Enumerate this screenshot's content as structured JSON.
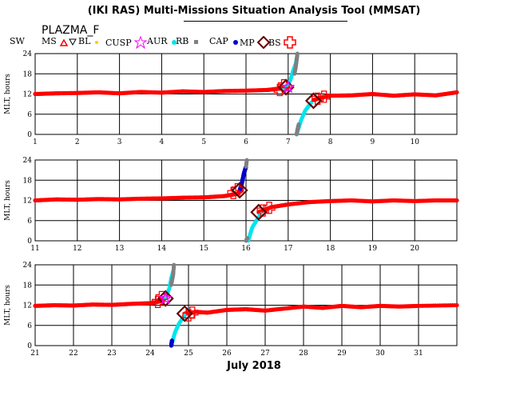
{
  "header": {
    "title": "(IKI RAS) Multi-Missions Situation Analysis Tool (MMSAT)",
    "subtitle": "PLAZMA_F"
  },
  "legend": [
    {
      "label": "SW",
      "symbol": "none",
      "color": "#000000"
    },
    {
      "label": "MS",
      "symbol": "triangle",
      "color": "#ff0000"
    },
    {
      "label": "BL",
      "symbol": "triangle-down",
      "color": "#000000"
    },
    {
      "label": "CUSP",
      "symbol": "dot",
      "color": "#ffcc00"
    },
    {
      "label": "AUR",
      "symbol": "star",
      "color": "#ff00ff"
    },
    {
      "label": "RB",
      "symbol": "dot",
      "color": "#00e5ee"
    },
    {
      "label": "CAP",
      "symbol": "square",
      "color": "#808080"
    },
    {
      "label": "MP",
      "symbol": "dot",
      "color": "#0000cc"
    },
    {
      "label": "BS",
      "symbol": "diamond",
      "color": "#660000"
    },
    {
      "label": "",
      "symbol": "cross",
      "color": "#ff0000"
    }
  ],
  "x_axis_title": "July 2018",
  "colors": {
    "sw": "#ff0000",
    "rb": "#00e5ee",
    "cap": "#808080",
    "mp": "#0000cc",
    "ms": "#ff0000",
    "bs_diamond": "#660000",
    "cross": "#ff0000",
    "aur": "#ff00ff"
  },
  "chart_data": [
    {
      "type": "scatter",
      "ylabel": "MLT, hours",
      "xlim": [
        1,
        11
      ],
      "ylim": [
        0,
        24
      ],
      "yticks": [
        0,
        6,
        12,
        18,
        24
      ],
      "xticks": [
        1,
        2,
        3,
        4,
        5,
        6,
        7,
        8,
        9,
        10
      ],
      "grid": true,
      "sw_track": {
        "x": [
          1.0,
          1.5,
          2.0,
          2.5,
          3.0,
          3.5,
          4.0,
          4.5,
          5.0,
          5.5,
          6.0,
          6.5,
          6.8,
          7.0
        ],
        "y": [
          12.0,
          12.2,
          12.3,
          12.5,
          12.2,
          12.6,
          12.4,
          12.8,
          12.6,
          12.9,
          13.0,
          13.2,
          13.6,
          14.0
        ]
      },
      "sw_track_2": {
        "x": [
          7.6,
          7.8,
          8.0,
          8.5,
          9.0,
          9.5,
          10.0,
          10.5,
          11.0
        ],
        "y": [
          10.2,
          11.0,
          11.5,
          11.6,
          12.0,
          11.5,
          11.9,
          11.6,
          12.5
        ]
      },
      "crossing": {
        "x": [
          6.9,
          7.05,
          7.12,
          7.18,
          7.22
        ],
        "y": [
          13.5,
          16.0,
          19.0,
          21.0,
          24.0
        ]
      },
      "crossing_cap": {
        "x": [
          7.15,
          7.18,
          7.2,
          7.22
        ],
        "y": [
          18.0,
          20.0,
          22.0,
          24.0
        ]
      },
      "return": {
        "x": [
          7.2,
          7.25,
          7.3,
          7.4,
          7.55
        ],
        "y": [
          0.0,
          2.0,
          4.0,
          7.0,
          9.5
        ]
      },
      "return_cap": {
        "x": [
          7.2,
          7.22,
          7.25
        ],
        "y": [
          0.0,
          1.5,
          3.0
        ]
      },
      "bs_markers": {
        "x": [
          6.95,
          7.6
        ],
        "y": [
          14.0,
          10.0
        ]
      },
      "aur_markers": {
        "x": [
          7.0
        ],
        "y": [
          14.0
        ]
      },
      "cross_markers": {
        "x": [
          6.8,
          6.9,
          7.7,
          7.85
        ],
        "y": [
          13.2,
          14.6,
          10.6,
          11.2
        ]
      }
    },
    {
      "type": "scatter",
      "ylabel": "MLT, hours",
      "xlim": [
        11,
        21
      ],
      "ylim": [
        0,
        24
      ],
      "yticks": [
        0,
        6,
        12,
        18,
        24
      ],
      "xticks": [
        11,
        12,
        13,
        14,
        15,
        16,
        17,
        18,
        19,
        20
      ],
      "grid": true,
      "sw_track": {
        "x": [
          11.0,
          11.5,
          12.0,
          12.5,
          13.0,
          13.5,
          14.0,
          14.5,
          15.0,
          15.5,
          15.8,
          15.9
        ],
        "y": [
          12.0,
          12.3,
          12.2,
          12.4,
          12.3,
          12.5,
          12.6,
          12.8,
          12.9,
          13.3,
          14.0,
          15.0
        ]
      },
      "sw_track_2": {
        "x": [
          16.3,
          16.6,
          17.0,
          17.5,
          18.0,
          18.5,
          19.0,
          19.5,
          20.0,
          20.5,
          21.0
        ],
        "y": [
          8.5,
          10.0,
          10.8,
          11.5,
          11.8,
          12.0,
          11.7,
          12.0,
          11.8,
          12.0,
          12.0
        ]
      },
      "crossing": {
        "x": [
          15.85,
          15.9,
          15.95,
          16.0
        ],
        "y": [
          15.0,
          17.0,
          20.0,
          22.0
        ]
      },
      "crossing_mp": {
        "x": [
          15.85,
          15.9,
          15.95,
          16.0
        ],
        "y": [
          15.0,
          17.0,
          20.0,
          22.0
        ]
      },
      "crossing_cap": {
        "x": [
          16.0,
          16.02
        ],
        "y": [
          22.0,
          24.0
        ]
      },
      "return": {
        "x": [
          16.05,
          16.1,
          16.15,
          16.25,
          16.35
        ],
        "y": [
          0.0,
          2.0,
          4.0,
          6.0,
          8.0
        ]
      },
      "return_cap": {
        "x": [
          16.0,
          16.03
        ],
        "y": [
          0.0,
          0.8
        ]
      },
      "bs_markers": {
        "x": [
          15.85,
          16.3
        ],
        "y": [
          15.0,
          8.5
        ]
      },
      "aur_markers": {
        "x": [],
        "y": []
      },
      "cross_markers": {
        "x": [
          15.7,
          15.8,
          16.4,
          16.55
        ],
        "y": [
          14.2,
          15.3,
          9.0,
          9.8
        ]
      }
    },
    {
      "type": "scatter",
      "ylabel": "MLT, hours",
      "xlim": [
        21,
        32
      ],
      "ylim": [
        0,
        24
      ],
      "yticks": [
        0,
        6,
        12,
        18,
        24
      ],
      "xticks": [
        21,
        22,
        23,
        24,
        25,
        26,
        27,
        28,
        29,
        30,
        31
      ],
      "grid": true,
      "sw_track": {
        "x": [
          21.0,
          21.5,
          22.0,
          22.5,
          23.0,
          23.5,
          24.0,
          24.2,
          24.35
        ],
        "y": [
          11.8,
          12.0,
          11.9,
          12.2,
          12.1,
          12.4,
          12.6,
          13.0,
          13.8
        ]
      },
      "sw_track_2": {
        "x": [
          24.9,
          25.2,
          25.5,
          26.0,
          26.5,
          27.0,
          27.5,
          28.0,
          28.5,
          29.0,
          29.5,
          30.0,
          30.5,
          31.0,
          32.0
        ],
        "y": [
          9.5,
          10.0,
          9.8,
          10.6,
          10.8,
          10.4,
          11.0,
          11.6,
          11.2,
          11.8,
          11.4,
          11.8,
          11.6,
          11.8,
          12.0
        ]
      },
      "crossing": {
        "x": [
          24.4,
          24.5,
          24.55,
          24.6
        ],
        "y": [
          14.0,
          17.0,
          20.0,
          22.0
        ]
      },
      "crossing_cap": {
        "x": [
          24.55,
          24.6,
          24.62
        ],
        "y": [
          18.0,
          21.0,
          24.0
        ]
      },
      "return": {
        "x": [
          24.55,
          24.6,
          24.65,
          24.75,
          24.9
        ],
        "y": [
          0.0,
          2.0,
          4.0,
          6.5,
          9.0
        ]
      },
      "return_mp": {
        "x": [
          24.55,
          24.57
        ],
        "y": [
          0.0,
          1.5
        ]
      },
      "bs_markers": {
        "x": [
          24.4,
          24.9
        ],
        "y": [
          14.0,
          9.5
        ]
      },
      "aur_markers": {
        "x": [
          24.4
        ],
        "y": [
          14.0
        ]
      },
      "cross_markers": {
        "x": [
          24.2,
          24.3,
          25.0,
          25.1
        ],
        "y": [
          13.0,
          14.4,
          9.0,
          9.8
        ]
      }
    }
  ]
}
